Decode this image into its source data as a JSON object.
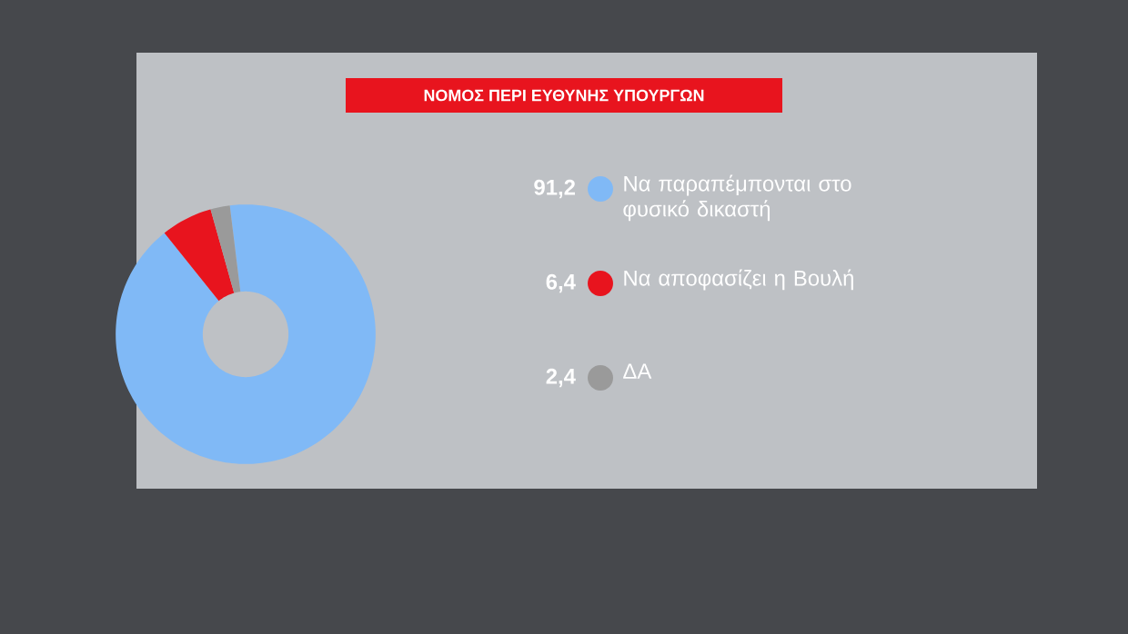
{
  "chart_data": {
    "type": "donut",
    "title": "ΝΟΜΟΣ ΠΕΡΙ ΕΥΘΥΝΗΣ ΥΠΟΥΡΓΩΝ",
    "categories": [
      "Να παραπέμπονται στο φυσικό δικαστή",
      "Να αποφασίζει η Βουλή",
      "ΔΑ"
    ],
    "values": [
      91.2,
      6.4,
      2.4
    ],
    "value_labels": [
      "91,2",
      "6,4",
      "2,4"
    ],
    "colors": [
      "#80b9f6",
      "#e8141e",
      "#9a9a9a"
    ],
    "legend": "right"
  }
}
